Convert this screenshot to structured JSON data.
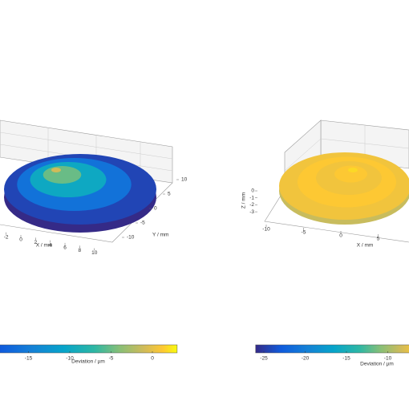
{
  "chart_data": [
    {
      "type": "surface3d",
      "xlabel": "X / mm",
      "ylabel": "Y / mm",
      "xlim": [
        -12,
        12
      ],
      "xticks": [
        -2,
        0,
        2,
        4,
        6,
        8,
        10
      ],
      "ylim": [
        -12,
        12
      ],
      "yticks": [
        10,
        5,
        0,
        -5,
        -10
      ],
      "profile": {
        "radius": [
          12,
          9,
          6,
          3,
          0
        ],
        "values": [
          -20,
          -16,
          -10,
          -5,
          -1
        ]
      },
      "colorbar": {
        "label": "Deviation / µm",
        "clim": [
          -22,
          3
        ],
        "ticks": [
          -15,
          -10,
          -5,
          0
        ]
      }
    },
    {
      "type": "surface3d",
      "xlabel": "X / mm",
      "zlabel": "Z / mm",
      "xlim": [
        -12,
        12
      ],
      "xticks": [
        -10,
        -5,
        0,
        5
      ],
      "zlim": [
        -3.5,
        0.5
      ],
      "zticks": [
        0,
        -1,
        -2,
        -3
      ],
      "profile": {
        "radius": [
          12,
          9,
          6,
          3,
          0
        ],
        "values": [
          -7,
          -6.5,
          -7,
          -6.5,
          -6
        ]
      },
      "colorbar": {
        "label": "Deviation / µm",
        "clim": [
          -26,
          -5
        ],
        "ticks": [
          -25,
          -20,
          -15,
          -10
        ]
      }
    }
  ]
}
